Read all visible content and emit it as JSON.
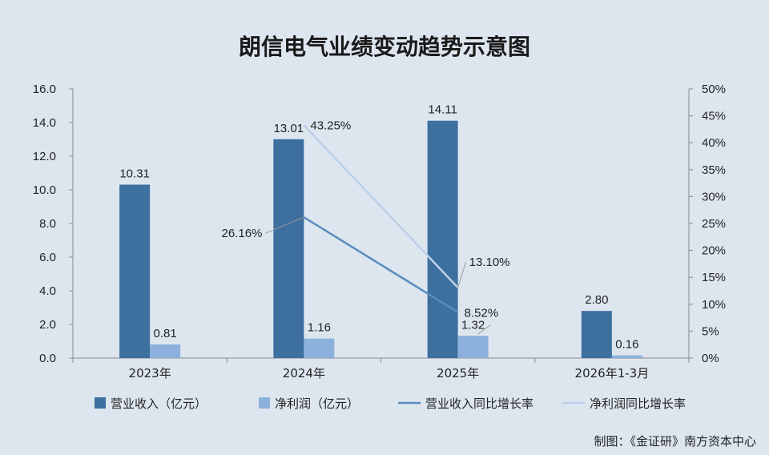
{
  "chart_data": {
    "type": "bar",
    "title": "朗信电气业绩变动趋势示意图",
    "categories": [
      "2023年",
      "2024年",
      "2025年",
      "2026年1-3月"
    ],
    "ylim": [
      0,
      16
    ],
    "y_ticks": [
      "0.0",
      "2.0",
      "4.0",
      "6.0",
      "8.0",
      "10.0",
      "12.0",
      "14.0",
      "16.0"
    ],
    "y2lim": [
      0,
      50
    ],
    "y2_ticks": [
      "0%",
      "5%",
      "10%",
      "15%",
      "20%",
      "25%",
      "30%",
      "35%",
      "40%",
      "45%",
      "50%"
    ],
    "series": [
      {
        "name": "营业收入（亿元）",
        "type": "bar",
        "axis": "left",
        "color": "#3d6f9f",
        "values": [
          10.31,
          13.01,
          14.11,
          2.8
        ],
        "labels": [
          "10.31",
          "13.01",
          "14.11",
          "2.80"
        ]
      },
      {
        "name": "净利润（亿元）",
        "type": "bar",
        "axis": "left",
        "color": "#8cb1dc",
        "values": [
          0.81,
          1.16,
          1.32,
          0.16
        ],
        "labels": [
          "0.81",
          "1.16",
          "1.32",
          "0.16"
        ]
      },
      {
        "name": "营业收入同比增长率",
        "type": "line",
        "axis": "right",
        "color": "#5a8cbd",
        "values": [
          null,
          26.16,
          8.52,
          null
        ],
        "labels": [
          "",
          "26.16%",
          "8.52%",
          ""
        ]
      },
      {
        "name": "净利润同比增长率",
        "type": "line",
        "axis": "right",
        "color": "#bcd0ea",
        "values": [
          null,
          43.25,
          13.1,
          null
        ],
        "labels": [
          "",
          "43.25%",
          "13.10%",
          ""
        ]
      }
    ],
    "grid": false,
    "legend_position": "bottom"
  },
  "credit": "制图：《金证研》南方资本中心"
}
